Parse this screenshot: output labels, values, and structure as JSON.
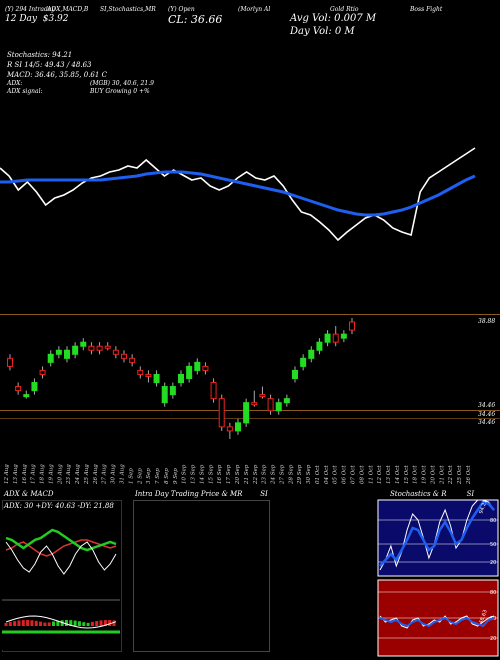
{
  "header": {
    "col1_line1": "(Y) 294 Intraday",
    "col1_line2": "12  Day",
    "col1_line3": "$3.92",
    "col2": "ADX,MACD,B",
    "col3": "SI,Stochastics,MR",
    "col4_line1": "(Y) Open",
    "col4_line2": "CL: 36.66",
    "col5": "(Morlyn Al",
    "col6": "Gold Rtio",
    "col7": "Boss Fight",
    "avg_vol": "Avg Vol: 0.007  M",
    "day_vol": "Day Vol: 0   M"
  },
  "stats": {
    "stochastics": "Stochastics: 94.21",
    "si": "R  SI 14/5: 49.43 / 48.63",
    "macd": "MACD: 36.46, 35.85, 0.61 C",
    "adx": "ADX:",
    "adx_vals": "(MGB) 30, 40.6,  21.9",
    "adx_signal": "ADX  signal:",
    "buy_signal": "BUY Growing 0 +%"
  },
  "price_levels": {
    "top": "38.88",
    "low1": "34.46",
    "low2": "34.46",
    "low3": "34.46"
  },
  "date_labels": [
    "12 Aug",
    "13 Aug",
    "16 Aug",
    "17 Aug",
    "18 Aug",
    "19 Aug",
    "20 Aug",
    "23 Aug",
    "24 Aug",
    "25 Aug",
    "26 Aug",
    "27 Aug",
    "30 Aug",
    "31 Aug",
    "1 Sep",
    "2 Sep",
    "3 Sep",
    "7 Sep",
    "8 Sep",
    "9 Sep",
    "10 Sep",
    "13 Sep",
    "14 Sep",
    "15 Sep",
    "16 Sep",
    "17 Sep",
    "20 Sep",
    "21 Sep",
    "22 Sep",
    "23 Sep",
    "24 Sep",
    "27 Sep",
    "28 Sep",
    "29 Sep",
    "30 Sep",
    "01 Oct",
    "04 Oct",
    "05 Oct",
    "06 Oct",
    "07 Oct",
    "08 Oct",
    "11 Oct",
    "12 Oct",
    "13 Oct",
    "14 Oct",
    "15 Oct",
    "18 Oct",
    "19 Oct",
    "20 Oct",
    "21 Oct",
    "22 Oct",
    "25 Oct",
    "26 Oct"
  ],
  "bottom_panels": {
    "adx_title": "ADX  & MACD",
    "adx_readout": "ADX: 30  +DY: 40.63  -DY: 21.88",
    "intra_title": "Intra  Day Trading Price  & MR",
    "intra_title_suffix": "SI",
    "stoch_title": "Stochastics & R",
    "stoch_title_suffix": "SI",
    "stoch_levels": [
      "80",
      "50",
      "20"
    ],
    "rsi_levels": [
      "80",
      "50",
      "20"
    ],
    "stoch_value": "94.21",
    "rsi_value": "48.63"
  },
  "colors": {
    "background": "#000000",
    "accent_blue": "#1e5ef0",
    "up_candle": "#22dd22",
    "down_candle": "#ee2222",
    "level_line": "#8a5a1a",
    "rsi_bg": "#9a0000",
    "stoch_bg": "#0a0a6a"
  },
  "chart_data": [
    {
      "type": "line",
      "series": [],
      "note_free": true,
      "x": [
        "12 Aug",
        "13 Aug",
        "16 Aug",
        "17 Aug",
        "18 Aug",
        "19 Aug",
        "20 Aug",
        "23 Aug",
        "24 Aug",
        "25 Aug",
        "26 Aug",
        "27 Aug",
        "30 Aug",
        "31 Aug",
        "1 Sep",
        "2 Sep",
        "3 Sep",
        "7 Sep",
        "8 Sep",
        "9 Sep",
        "10 Sep",
        "13 Sep",
        "14 Sep",
        "15 Sep",
        "16 Sep",
        "17 Sep",
        "20 Sep",
        "21 Sep",
        "22 Sep",
        "23 Sep",
        "24 Sep",
        "27 Sep",
        "28 Sep",
        "29 Sep",
        "30 Sep",
        "01 Oct",
        "04 Oct",
        "05 Oct",
        "06 Oct",
        "07 Oct",
        "08 Oct",
        "11 Oct",
        "12 Oct",
        "13 Oct",
        "14 Oct",
        "15 Oct",
        "18 Oct",
        "19 Oct",
        "20 Oct",
        "21 Oct",
        "22 Oct",
        "25 Oct",
        "26 Oct"
      ],
      "white_line": [
        168,
        176,
        190,
        182,
        192,
        205,
        198,
        195,
        190,
        183,
        178,
        176,
        172,
        170,
        166,
        168,
        160,
        168,
        176,
        170,
        175,
        180,
        178,
        186,
        190,
        186,
        178,
        172,
        178,
        180,
        176,
        186,
        200,
        212,
        215,
        222,
        230,
        240,
        232,
        225,
        218,
        215,
        220,
        228,
        232,
        235,
        192,
        178,
        172,
        166,
        160,
        154,
        148
      ],
      "blue_line": [
        182,
        182,
        181,
        180,
        180,
        180,
        180,
        180,
        180,
        180,
        180,
        180,
        179,
        178,
        177,
        176,
        174,
        173,
        172,
        172,
        172,
        173,
        174,
        176,
        178,
        180,
        182,
        184,
        186,
        188,
        190,
        192,
        195,
        198,
        201,
        204,
        207,
        210,
        212,
        214,
        215,
        215,
        214,
        212,
        210,
        207,
        203,
        199,
        195,
        190,
        185,
        180,
        176
      ]
    },
    {
      "type": "bar",
      "title": "",
      "candles": [
        {
          "o": 35.7,
          "c": 35.9,
          "h": 36.0,
          "l": 35.6,
          "up": false
        },
        {
          "o": 35.2,
          "c": 35.1,
          "h": 35.3,
          "l": 35.0,
          "up": false
        },
        {
          "o": 35.0,
          "c": 35.0,
          "h": 35.1,
          "l": 34.9,
          "up": true
        },
        {
          "o": 35.1,
          "c": 35.3,
          "h": 35.4,
          "l": 35.0,
          "up": true
        },
        {
          "o": 35.5,
          "c": 35.6,
          "h": 35.7,
          "l": 35.4,
          "up": false
        },
        {
          "o": 35.8,
          "c": 36.0,
          "h": 36.1,
          "l": 35.7,
          "up": true
        },
        {
          "o": 36.0,
          "c": 36.1,
          "h": 36.2,
          "l": 35.9,
          "up": true
        },
        {
          "o": 35.9,
          "c": 36.1,
          "h": 36.2,
          "l": 35.8,
          "up": true
        },
        {
          "o": 36.0,
          "c": 36.2,
          "h": 36.3,
          "l": 35.9,
          "up": true
        },
        {
          "o": 36.2,
          "c": 36.3,
          "h": 36.4,
          "l": 36.1,
          "up": true
        },
        {
          "o": 36.2,
          "c": 36.1,
          "h": 36.3,
          "l": 36.0,
          "up": false
        },
        {
          "o": 36.1,
          "c": 36.2,
          "h": 36.3,
          "l": 36.0,
          "up": false
        },
        {
          "o": 36.2,
          "c": 36.2,
          "h": 36.3,
          "l": 36.1,
          "up": false
        },
        {
          "o": 36.1,
          "c": 36.0,
          "h": 36.2,
          "l": 35.9,
          "up": false
        },
        {
          "o": 36.0,
          "c": 35.9,
          "h": 36.1,
          "l": 35.8,
          "up": false
        },
        {
          "o": 35.9,
          "c": 35.8,
          "h": 36.0,
          "l": 35.7,
          "up": false
        },
        {
          "o": 35.6,
          "c": 35.5,
          "h": 35.7,
          "l": 35.4,
          "up": false
        },
        {
          "o": 35.5,
          "c": 35.5,
          "h": 35.6,
          "l": 35.3,
          "up": false
        },
        {
          "o": 35.3,
          "c": 35.5,
          "h": 35.6,
          "l": 35.2,
          "up": true
        },
        {
          "o": 34.8,
          "c": 35.2,
          "h": 35.3,
          "l": 34.7,
          "up": true
        },
        {
          "o": 35.0,
          "c": 35.2,
          "h": 35.3,
          "l": 34.9,
          "up": true
        },
        {
          "o": 35.3,
          "c": 35.5,
          "h": 35.6,
          "l": 35.2,
          "up": true
        },
        {
          "o": 35.4,
          "c": 35.7,
          "h": 35.8,
          "l": 35.3,
          "up": true
        },
        {
          "o": 35.6,
          "c": 35.8,
          "h": 35.9,
          "l": 35.5,
          "up": true
        },
        {
          "o": 35.7,
          "c": 35.6,
          "h": 35.8,
          "l": 35.5,
          "up": false
        },
        {
          "o": 35.3,
          "c": 34.9,
          "h": 35.4,
          "l": 34.8,
          "up": false
        },
        {
          "o": 34.9,
          "c": 34.2,
          "h": 35.0,
          "l": 34.1,
          "up": false
        },
        {
          "o": 34.2,
          "c": 34.1,
          "h": 34.3,
          "l": 33.9,
          "up": false
        },
        {
          "o": 34.1,
          "c": 34.3,
          "h": 34.4,
          "l": 34.0,
          "up": true
        },
        {
          "o": 34.3,
          "c": 34.8,
          "h": 34.9,
          "l": 34.2,
          "up": true
        },
        {
          "o": 34.8,
          "c": 34.8,
          "h": 35.1,
          "l": 34.7,
          "up": false
        },
        {
          "o": 35.0,
          "c": 35.0,
          "h": 35.2,
          "l": 34.9,
          "up": false
        },
        {
          "o": 34.9,
          "c": 34.6,
          "h": 35.0,
          "l": 34.5,
          "up": false
        },
        {
          "o": 34.6,
          "c": 34.8,
          "h": 34.9,
          "l": 34.5,
          "up": true
        },
        {
          "o": 34.8,
          "c": 34.9,
          "h": 35.0,
          "l": 34.7,
          "up": true
        },
        {
          "o": 35.4,
          "c": 35.6,
          "h": 35.7,
          "l": 35.3,
          "up": true
        },
        {
          "o": 35.7,
          "c": 35.9,
          "h": 36.0,
          "l": 35.6,
          "up": true
        },
        {
          "o": 35.9,
          "c": 36.1,
          "h": 36.2,
          "l": 35.8,
          "up": true
        },
        {
          "o": 36.1,
          "c": 36.3,
          "h": 36.4,
          "l": 36.0,
          "up": true
        },
        {
          "o": 36.3,
          "c": 36.5,
          "h": 36.6,
          "l": 36.2,
          "up": true
        },
        {
          "o": 36.5,
          "c": 36.3,
          "h": 36.7,
          "l": 36.2,
          "up": false
        },
        {
          "o": 36.4,
          "c": 36.5,
          "h": 36.6,
          "l": 36.3,
          "up": true
        },
        {
          "o": 36.6,
          "c": 36.8,
          "h": 36.9,
          "l": 36.5,
          "up": false
        }
      ]
    }
  ]
}
